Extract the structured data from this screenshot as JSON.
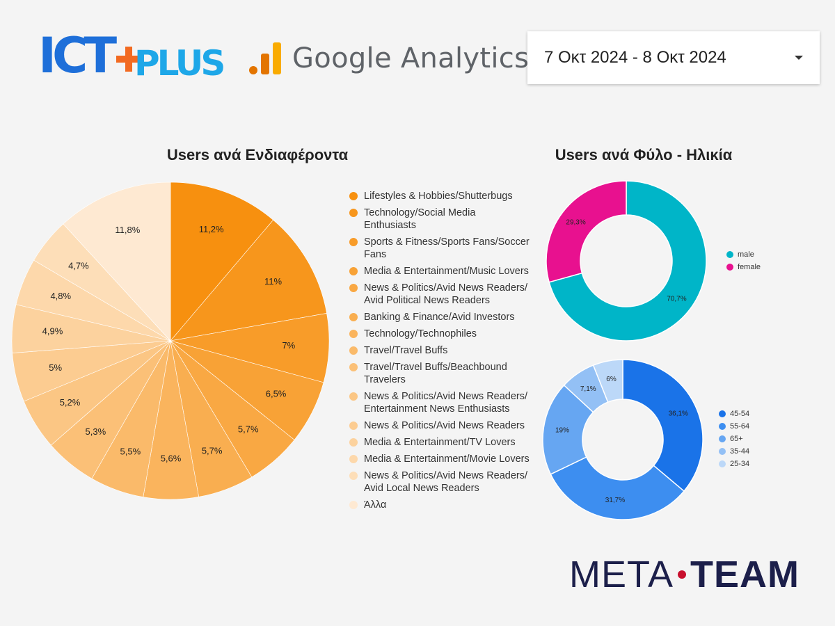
{
  "header": {
    "ict_logo_text": [
      "ICT",
      "PLUS"
    ],
    "ga_text": "Google Analytics",
    "date_range": "7 Οκτ 2024 - 8 Οκτ 2024"
  },
  "footer": {
    "meta": "META",
    "team": "TEAM"
  },
  "chart_data": [
    {
      "type": "pie",
      "title": "Users ανά Ενδιαφέροντα",
      "categories": [
        "Lifestyles & Hobbies/Shutterbugs",
        "Technology/Social Media Enthusiasts",
        "Sports & Fitness/Sports Fans/Soccer Fans",
        "Media & Entertainment/Music Lovers",
        "News & Politics/Avid News Readers/ Avid Political News Readers",
        "Banking & Finance/Avid Investors",
        "Technology/Technophiles",
        "Travel/Travel Buffs",
        "Travel/Travel Buffs/Beachbound Travelers",
        "News & Politics/Avid News Readers/ Entertainment News Enthusiasts",
        "News & Politics/Avid News Readers",
        "Media & Entertainment/TV Lovers",
        "Media & Entertainment/Movie Lovers",
        "News & Politics/Avid News Readers/ Avid Local News Readers",
        "Άλλα"
      ],
      "values": [
        11.2,
        11,
        7,
        6.5,
        5.7,
        5.7,
        5.6,
        5.5,
        5.3,
        5.2,
        5,
        4.9,
        4.8,
        4.7,
        11.8
      ],
      "labels": [
        "11,2%",
        "11%",
        "7%",
        "6,5%",
        "5,7%",
        "5,7%",
        "5,6%",
        "5,5%",
        "5,3%",
        "5,2%",
        "5%",
        "4,9%",
        "4,8%",
        "4,7%",
        "11,8%"
      ],
      "colors": [
        "#f7900f",
        "#f7961c",
        "#f89c29",
        "#f8a236",
        "#f9a843",
        "#f9ae50",
        "#fab45d",
        "#faba6a",
        "#fbc077",
        "#fbc684",
        "#fccc91",
        "#fcd29e",
        "#fdd8ab",
        "#fddeb8",
        "#fee9d2"
      ],
      "legend_position": "right"
    },
    {
      "type": "pie",
      "title": "Users ανά Φύλο - Ηλικία",
      "categories": [
        "male",
        "female"
      ],
      "values": [
        70.7,
        29.3
      ],
      "labels": [
        "70,7%",
        "29,3%"
      ],
      "colors": [
        "#00b5c8",
        "#e8118f"
      ],
      "legend_position": "right"
    },
    {
      "type": "pie",
      "categories": [
        "45-54",
        "55-64",
        "65+",
        "35-44",
        "25-34"
      ],
      "values": [
        36.1,
        31.7,
        19,
        7.1,
        6
      ],
      "labels": [
        "36,1%",
        "31,7%",
        "19%",
        "7,1%",
        "6%"
      ],
      "colors": [
        "#1a73e8",
        "#3d8ef0",
        "#66a6f2",
        "#93c0f5",
        "#bcd8f8"
      ],
      "legend_position": "right"
    }
  ]
}
